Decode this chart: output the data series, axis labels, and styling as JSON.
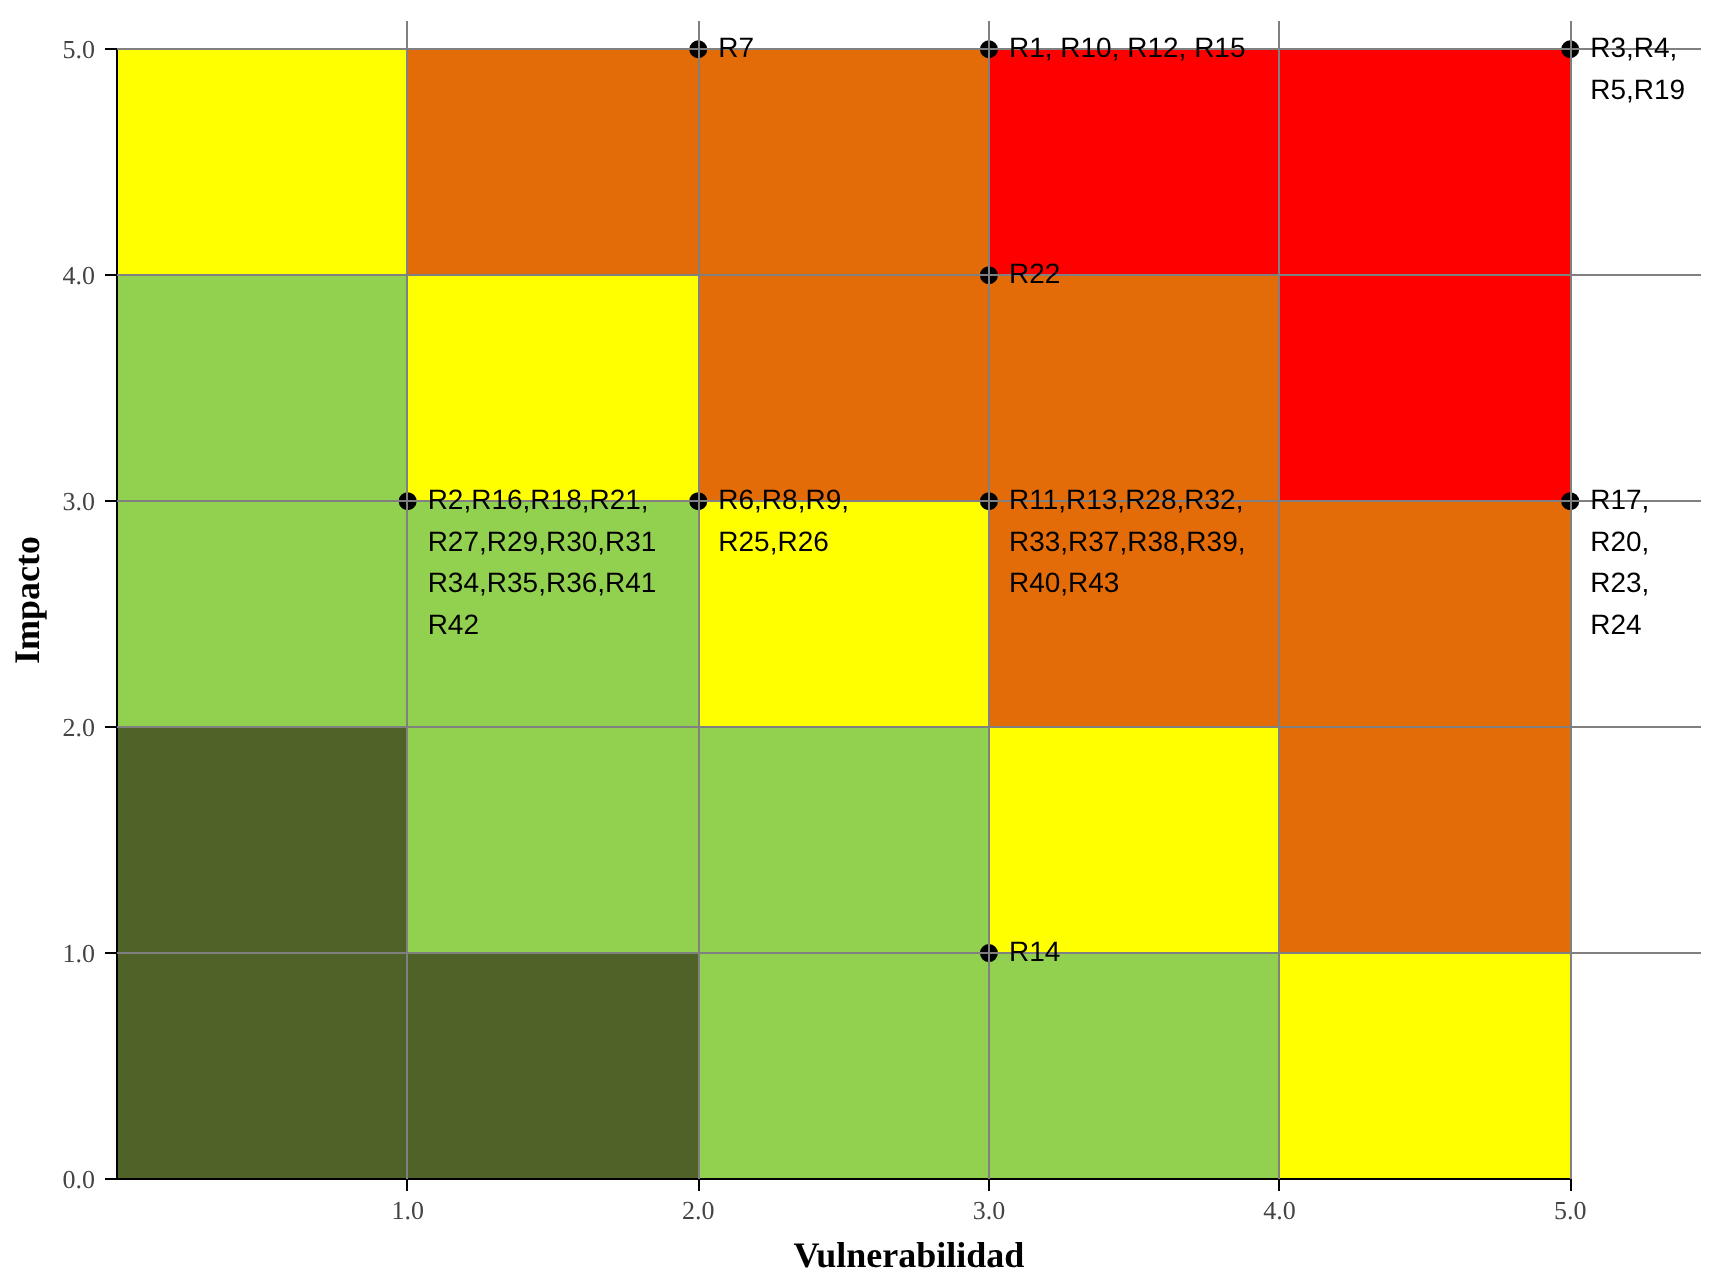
{
  "chart_data": {
    "type": "bar",
    "stacked": true,
    "xlabel": "Vulnerabilidad",
    "ylabel": "Impacto",
    "xlim": [
      0,
      5
    ],
    "ylim": [
      0,
      5
    ],
    "xticks": [
      {
        "value": 1,
        "label": "1.0"
      },
      {
        "value": 2,
        "label": "2.0"
      },
      {
        "value": 3,
        "label": "3.0"
      },
      {
        "value": 4,
        "label": "4.0"
      },
      {
        "value": 5,
        "label": "5.0"
      }
    ],
    "yticks": [
      {
        "value": 0,
        "label": "0.0"
      },
      {
        "value": 1,
        "label": "1.0"
      },
      {
        "value": 2,
        "label": "2.0"
      },
      {
        "value": 3,
        "label": "3.0"
      },
      {
        "value": 4,
        "label": "4.0"
      },
      {
        "value": 5,
        "label": "5.0"
      }
    ],
    "grid": true,
    "marker": "circle",
    "x": [
      0.5,
      1.5,
      2.5,
      3.5,
      4.5
    ],
    "series": [
      {
        "values": [
          1,
          1,
          1,
          1,
          1
        ],
        "colors": [
          "#4f6228",
          "#4f6228",
          "#92d050",
          "#92d050",
          "#ffff00"
        ]
      },
      {
        "values": [
          1,
          1,
          1,
          1,
          1
        ],
        "colors": [
          "#4f6228",
          "#92d050",
          "#92d050",
          "#ffff00",
          "#e36c09"
        ]
      },
      {
        "values": [
          1,
          1,
          1,
          1,
          1
        ],
        "colors": [
          "#92d050",
          "#92d050",
          "#ffff00",
          "#e36c09",
          "#e36c09"
        ]
      },
      {
        "values": [
          1,
          1,
          1,
          1,
          1
        ],
        "colors": [
          "#92d050",
          "#ffff00",
          "#e36c09",
          "#e36c09",
          "#ff0000"
        ]
      },
      {
        "values": [
          1,
          1,
          1,
          1,
          1
        ],
        "colors": [
          "#ffff00",
          "#e36c09",
          "#e36c09",
          "#ff0000",
          "#ff0000"
        ]
      },
      {
        "type": "scatter",
        "color": "#000000",
        "x": [
          2,
          3,
          5,
          3,
          1,
          2,
          3,
          5,
          3
        ],
        "values": [
          5,
          5,
          5,
          4,
          3,
          3,
          3,
          3,
          1
        ]
      }
    ],
    "annotations": [
      {
        "text": "R7",
        "x": 2,
        "y": 5
      },
      {
        "text": "R1, R10, R12, R15",
        "x": 3,
        "y": 5
      },
      {
        "text": "R3,R4,\nR5,R19",
        "x": 5,
        "y": 5
      },
      {
        "text": "R22",
        "x": 3,
        "y": 4
      },
      {
        "text": "R2,R16,R18,R21,\nR27,R29,R30,R31\nR34,R35,R36,R41\nR42",
        "x": 1,
        "y": 3
      },
      {
        "text": "R6,R8,R9,\nR25,R26",
        "x": 2,
        "y": 3
      },
      {
        "text": "R11,R13,R28,R32,\nR33,R37,R38,R39,\nR40,R43",
        "x": 3,
        "y": 3
      },
      {
        "text": "R17,\nR20,\nR23,\nR24",
        "x": 5,
        "y": 3
      },
      {
        "text": "R14",
        "x": 3,
        "y": 1
      }
    ]
  }
}
